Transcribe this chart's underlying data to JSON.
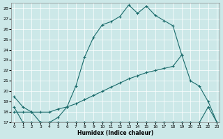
{
  "xlabel": "Humidex (Indice chaleur)",
  "bg_color": "#cce8e8",
  "grid_color": "#ffffff",
  "line_color": "#1a6b6b",
  "xlim": [
    -0.3,
    23.3
  ],
  "ylim": [
    17,
    28.5
  ],
  "yticks": [
    17,
    18,
    19,
    20,
    21,
    22,
    23,
    24,
    25,
    26,
    27,
    28
  ],
  "xticks": [
    0,
    1,
    2,
    3,
    4,
    5,
    6,
    7,
    8,
    9,
    10,
    11,
    12,
    13,
    14,
    15,
    16,
    17,
    18,
    19,
    20,
    21,
    22,
    23
  ],
  "line1_x": [
    0,
    1,
    2,
    3,
    4,
    5,
    6,
    7,
    8,
    9,
    10,
    11,
    12,
    13,
    14,
    15,
    16,
    17,
    18,
    19
  ],
  "line1_y": [
    19.5,
    18.5,
    18.0,
    17.0,
    17.0,
    17.5,
    18.5,
    20.5,
    23.3,
    25.2,
    26.4,
    26.7,
    27.2,
    28.3,
    27.5,
    28.2,
    27.3,
    26.8,
    26.3,
    23.5
  ],
  "line2_x": [
    0,
    1,
    2,
    3,
    4,
    5,
    6,
    7,
    8,
    9,
    10,
    11,
    12,
    13,
    14,
    15,
    16,
    17,
    18,
    19,
    20,
    21,
    22,
    23
  ],
  "line2_y": [
    18.0,
    18.0,
    18.0,
    18.0,
    18.0,
    18.3,
    18.5,
    18.8,
    19.2,
    19.6,
    20.0,
    20.4,
    20.8,
    21.2,
    21.5,
    21.8,
    22.0,
    22.2,
    22.4,
    23.5,
    21.0,
    20.5,
    19.0,
    17.0
  ],
  "line3_x": [
    0,
    1,
    2,
    3,
    4,
    5,
    6,
    7,
    8,
    9,
    10,
    11,
    12,
    13,
    14,
    15,
    16,
    17,
    18,
    19,
    20,
    21,
    22,
    23
  ],
  "line3_y": [
    18.5,
    17.0,
    17.0,
    17.0,
    17.0,
    17.0,
    17.0,
    17.0,
    17.0,
    17.0,
    17.0,
    17.0,
    17.0,
    17.0,
    17.0,
    17.0,
    17.0,
    17.0,
    17.0,
    17.0,
    17.0,
    17.0,
    18.5,
    17.0
  ]
}
